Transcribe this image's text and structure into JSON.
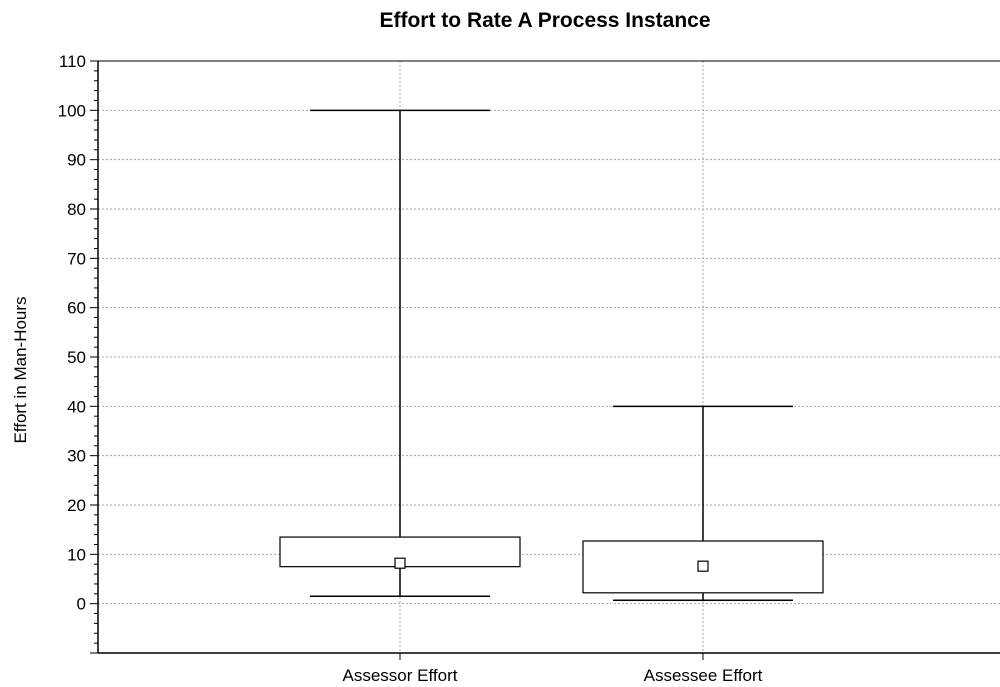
{
  "chart_data": {
    "type": "box",
    "title": "Effort to Rate A Process Instance",
    "xlabel": "",
    "ylabel": "Effort in Man-Hours",
    "ylim": [
      -10,
      110
    ],
    "yticks": [
      0,
      10,
      20,
      30,
      40,
      50,
      60,
      70,
      80,
      90,
      100,
      110
    ],
    "grid": true,
    "categories": [
      "Assessor Effort",
      "Assessee Effort"
    ],
    "boxes": [
      {
        "category": "Assessor Effort",
        "whisker_low": 1.5,
        "q1": 7.5,
        "q3": 13.5,
        "whisker_high": 100,
        "center": 8.2
      },
      {
        "category": "Assessee Effort",
        "whisker_low": 0.7,
        "q1": 2.2,
        "q3": 12.7,
        "whisker_high": 40,
        "center": 7.6
      }
    ]
  }
}
